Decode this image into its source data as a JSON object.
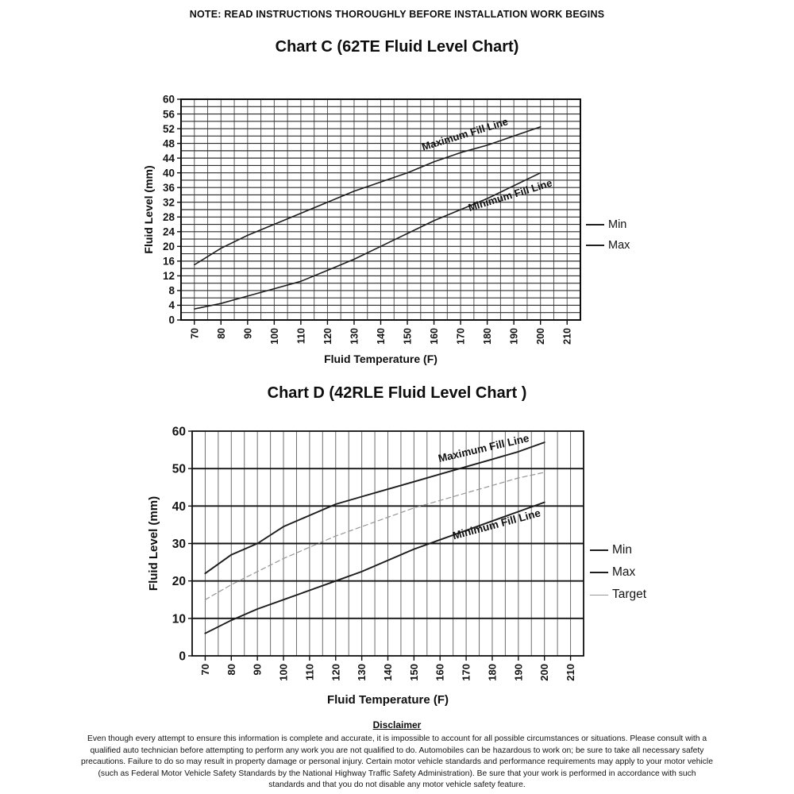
{
  "page": {
    "note": "NOTE: READ INSTRUCTIONS THOROUGHLY BEFORE INSTALLATION WORK BEGINS",
    "background_color": "#ffffff",
    "text_color": "#111111"
  },
  "chart_data": [
    {
      "type": "line",
      "title": "Chart C (62TE Fluid Level Chart)",
      "xlabel": "Fluid Temperature (F)",
      "ylabel": "Fluid Level (mm)",
      "x": [
        70,
        80,
        90,
        100,
        110,
        120,
        130,
        140,
        150,
        160,
        170,
        180,
        190,
        200
      ],
      "xticks": [
        70,
        80,
        90,
        100,
        110,
        120,
        130,
        140,
        150,
        160,
        170,
        180,
        190,
        200,
        210
      ],
      "yticks": [
        0,
        4,
        8,
        12,
        16,
        20,
        24,
        28,
        32,
        36,
        40,
        44,
        48,
        52,
        56,
        60
      ],
      "xlim": [
        65,
        215
      ],
      "ylim": [
        0,
        60
      ],
      "ytick_step": 4,
      "ygrid_step": 2,
      "xgrid_step": 5,
      "grid": true,
      "legend_position": "right",
      "series": [
        {
          "name": "Min",
          "color": "#1f1f1f",
          "width": 1.6,
          "dash": "",
          "values": [
            3,
            4.5,
            6.5,
            8.5,
            10.5,
            13.5,
            16.5,
            20,
            23.5,
            27,
            30,
            33,
            36.5,
            40
          ]
        },
        {
          "name": "Max",
          "color": "#1f1f1f",
          "width": 1.6,
          "dash": "",
          "values": [
            15,
            19.5,
            23,
            26,
            29,
            32,
            35,
            37.5,
            40,
            43,
            45.5,
            47.5,
            50,
            52.5
          ]
        }
      ],
      "annotations": [
        {
          "text": "Maximum Fill Line",
          "x": 172,
          "y": 49.6,
          "angle": -17
        },
        {
          "text": "Minimum Fill Line",
          "x": 189,
          "y": 33,
          "angle": -17
        }
      ]
    },
    {
      "type": "line",
      "title": "Chart D (42RLE Fluid Level Chart )",
      "xlabel": "Fluid Temperature (F)",
      "ylabel": "Fluid Level (mm)",
      "x": [
        70,
        80,
        90,
        100,
        110,
        120,
        130,
        140,
        150,
        160,
        170,
        180,
        190,
        200
      ],
      "xticks": [
        70,
        80,
        90,
        100,
        110,
        120,
        130,
        140,
        150,
        160,
        170,
        180,
        190,
        200,
        210
      ],
      "yticks": [
        0,
        10,
        20,
        30,
        40,
        50,
        60
      ],
      "xlim": [
        65,
        215
      ],
      "ylim": [
        0,
        60
      ],
      "ytick_step": 10,
      "ygrid_step": 10,
      "xgrid_step": 5,
      "grid": true,
      "legend_position": "right",
      "series": [
        {
          "name": "Min",
          "color": "#1d1d1d",
          "width": 1.9,
          "dash": "",
          "values": [
            6,
            9.5,
            12.5,
            15,
            17.5,
            20,
            22.5,
            25.5,
            28.5,
            31,
            33.5,
            36,
            38.5,
            41
          ]
        },
        {
          "name": "Max",
          "color": "#1d1d1d",
          "width": 1.9,
          "dash": "",
          "values": [
            22,
            27,
            30,
            34.5,
            37.5,
            40.5,
            42.5,
            44.5,
            46.5,
            48.5,
            50.5,
            52.5,
            54.5,
            57
          ]
        },
        {
          "name": "Target",
          "color": "#979797",
          "width": 1.2,
          "dash": "6 4",
          "values": [
            15,
            19,
            22.5,
            26,
            29,
            32,
            34.5,
            37,
            39.5,
            41.5,
            43.5,
            45.5,
            47.5,
            49
          ]
        }
      ],
      "annotations": [
        {
          "text": "Maximum Fill Line",
          "x": 177,
          "y": 54.5,
          "angle": -13
        },
        {
          "text": "Minimum Fill Line",
          "x": 182,
          "y": 34.2,
          "angle": -15
        }
      ]
    }
  ],
  "disclaimer": {
    "title": "Disclaimer",
    "body": "Even though every attempt to ensure this information is complete and accurate, it is impossible to account for all possible circumstances or situations.  Please consult with a qualified auto technician before attempting to perform any work you are not qualified to do.  Automobiles can be hazardous to work on; be sure to take all necessary safety precautions.  Failure to do so may result in property damage or personal injury.  Certain motor vehicle standards and performance requirements may apply to your motor vehicle (such as Federal Motor Vehicle Safety Standards by the National Highway Traffic Safety Administration).  Be sure that your work is performed in accordance with such standards and that you do not disable any motor vehicle safety feature."
  }
}
